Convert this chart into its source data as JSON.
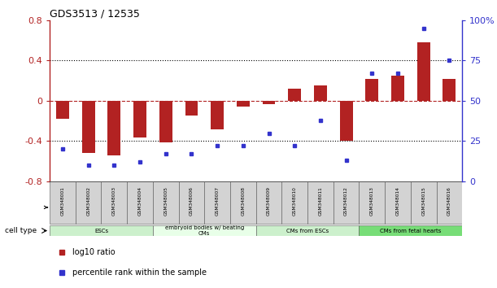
{
  "title": "GDS3513 / 12535",
  "samples": [
    "GSM348001",
    "GSM348002",
    "GSM348003",
    "GSM348004",
    "GSM348005",
    "GSM348006",
    "GSM348007",
    "GSM348008",
    "GSM348009",
    "GSM348010",
    "GSM348011",
    "GSM348012",
    "GSM348013",
    "GSM348014",
    "GSM348015",
    "GSM348016"
  ],
  "log10_ratio": [
    -0.18,
    -0.52,
    -0.54,
    -0.36,
    -0.41,
    -0.15,
    -0.28,
    -0.06,
    -0.03,
    0.12,
    0.15,
    -0.4,
    0.22,
    0.25,
    0.58,
    0.22
  ],
  "percentile_rank": [
    20,
    10,
    10,
    12,
    17,
    17,
    22,
    22,
    30,
    22,
    38,
    13,
    67,
    67,
    95,
    75
  ],
  "ylim_left": [
    -0.8,
    0.8
  ],
  "ylim_right": [
    0,
    100
  ],
  "yticks_left": [
    -0.8,
    -0.4,
    0.0,
    0.4,
    0.8
  ],
  "ytick_labels_left": [
    "-0.8",
    "-0.4",
    "0",
    "0.4",
    "0.8"
  ],
  "yticks_right": [
    0,
    25,
    50,
    75,
    100
  ],
  "ytick_labels_right": [
    "0",
    "25",
    "50",
    "75",
    "100%"
  ],
  "bar_color": "#b22222",
  "dot_color": "#3333cc",
  "cell_groups": [
    {
      "label": "ESCs",
      "start": 0,
      "end": 3,
      "color": "#ccf0cc"
    },
    {
      "label": "embryoid bodies w/ beating\nCMs",
      "start": 4,
      "end": 7,
      "color": "#e8ffe8"
    },
    {
      "label": "CMs from ESCs",
      "start": 8,
      "end": 11,
      "color": "#ccf0cc"
    },
    {
      "label": "CMs from fetal hearts",
      "start": 12,
      "end": 15,
      "color": "#77dd77"
    }
  ],
  "cell_type_label": "cell type",
  "legend_items": [
    {
      "label": "log10 ratio",
      "color": "#b22222"
    },
    {
      "label": "percentile rank within the sample",
      "color": "#3333cc"
    }
  ],
  "bar_width": 0.5
}
